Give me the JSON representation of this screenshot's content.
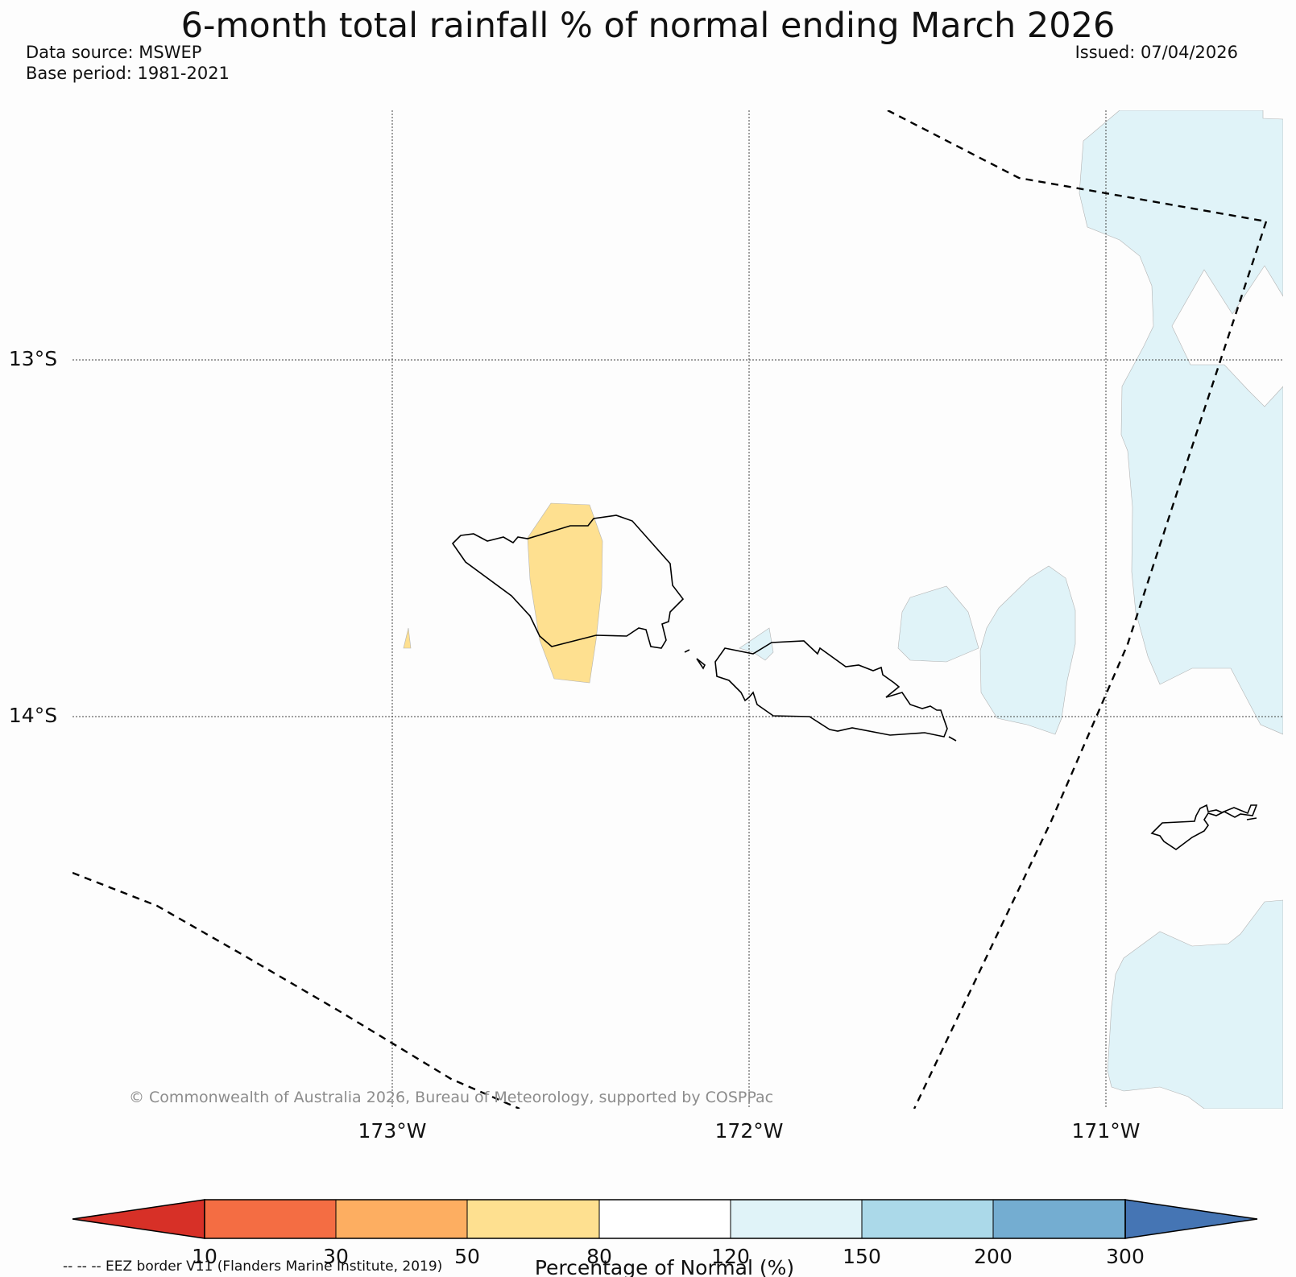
{
  "title": "6-month total rainfall % of normal ending March 2026",
  "data_source": "Data source: MSWEP",
  "base_period": "Base period: 1981-2021",
  "issued": "Issued: 07/04/2026",
  "copyright": "© Commonwealth of Australia 2026, Bureau of Meteorology, supported by COSPPac",
  "lat_labels": [
    "13°S",
    "14°S"
  ],
  "lon_labels": [
    "173°W",
    "172°W",
    "171°W"
  ],
  "colorbar": {
    "title": "Percentage of Normal (%)",
    "ticks": [
      "10",
      "30",
      "50",
      "80",
      "120",
      "150",
      "200",
      "300"
    ],
    "colors": [
      "#d73027",
      "#f46d43",
      "#fdae61",
      "#fee090",
      "#ffffff",
      "#e0f3f8",
      "#abd9e9",
      "#74add1",
      "#4575b4"
    ]
  },
  "eez_legend": "-- -- -- EEZ border V11 (Flanders Marine Institute, 2019)",
  "colors": {
    "below_normal_80": "#fee090",
    "above_normal_150": "#e0f3f8"
  }
}
